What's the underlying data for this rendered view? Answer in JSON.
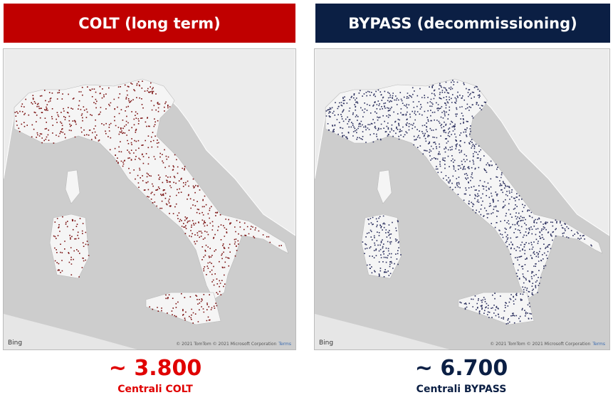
{
  "panels": [
    {
      "header": "COLT (long term)",
      "map": {
        "logo": "Bing",
        "attribution": "© 2021 TomTom © 2021 Microsoft Corporation",
        "terms": "Terms"
      },
      "count": "~ 3.800",
      "caption": "Centrali COLT"
    },
    {
      "header": "BYPASS (decommissioning)",
      "map": {
        "logo": "Bing",
        "attribution": "© 2021 TomTom © 2021 Microsoft Corporation",
        "terms": "Terms"
      },
      "count": "~ 6.700",
      "caption": "Centrali BYPASS"
    }
  ]
}
